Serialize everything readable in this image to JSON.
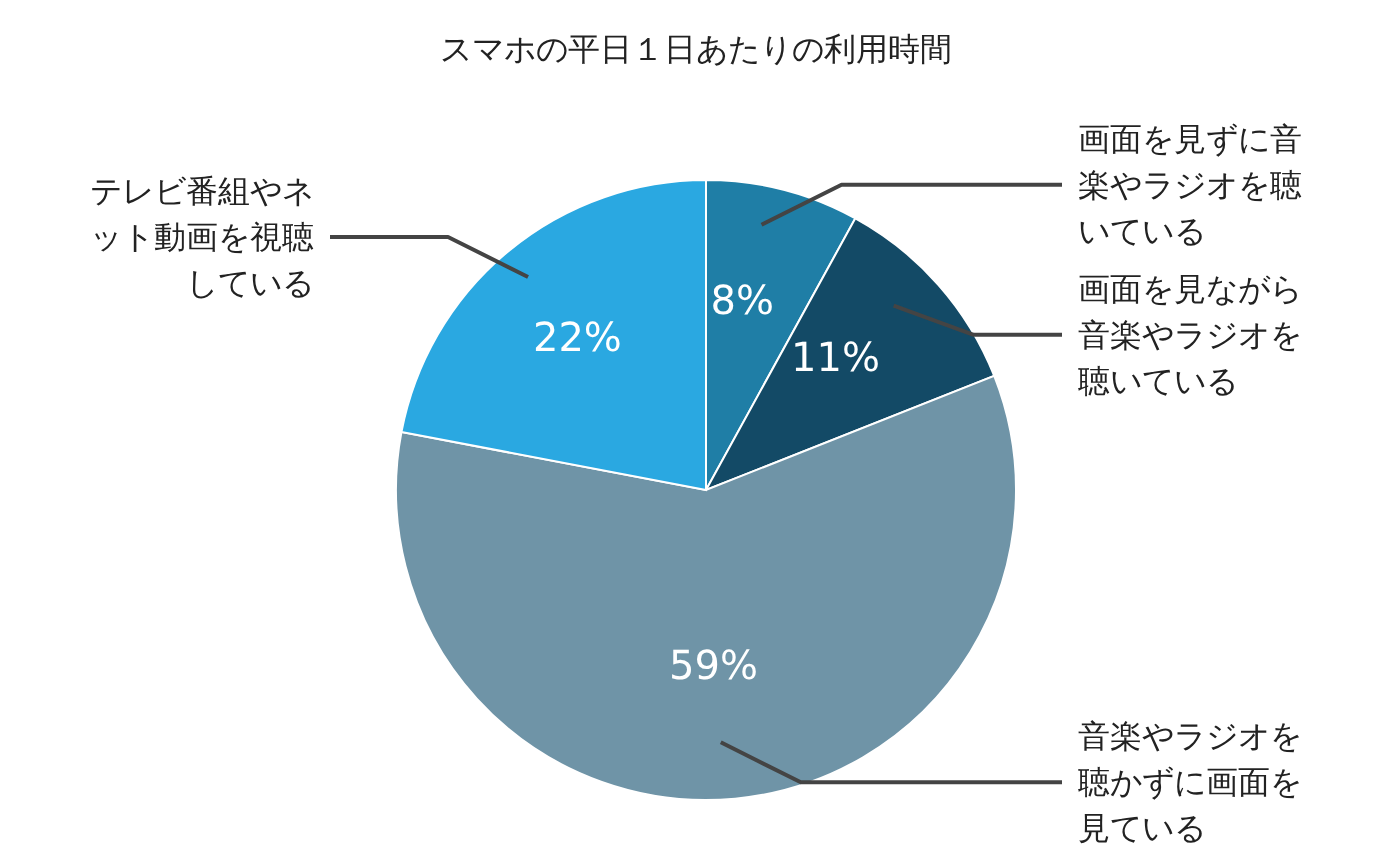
{
  "chart_data": {
    "type": "pie",
    "title": "スマホの平日１日あたりの利用時間",
    "categories": [
      "画面を見ずに音楽やラジオを聴いている",
      "画面を見ながら音楽やラジオを聴いている",
      "音楽やラジオを聴かずに画面を見ている",
      "テレビ番組やネット動画を視聴している"
    ],
    "values": [
      8,
      11,
      59,
      22
    ],
    "value_labels": [
      "8%",
      "11%",
      "59%",
      "22%"
    ],
    "colors": [
      "#1f7ea6",
      "#134a66",
      "#6f94a7",
      "#2aa8e1"
    ],
    "legend": false
  }
}
